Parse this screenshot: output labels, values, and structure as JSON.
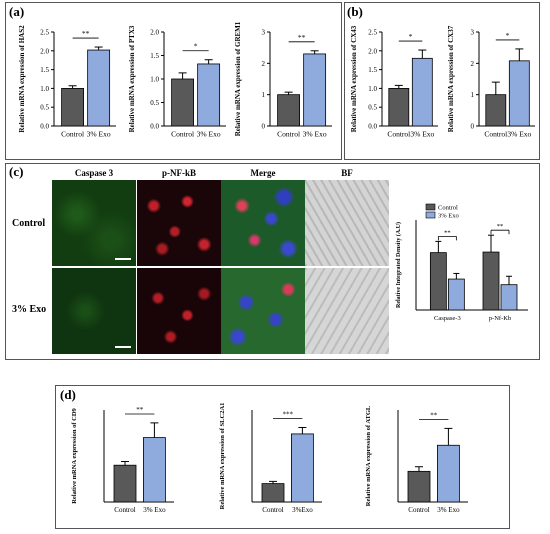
{
  "panels": {
    "a": "(a)",
    "b": "(b)",
    "c": "(c)",
    "d": "(d)"
  },
  "colors": {
    "control": "#595959",
    "exo": "#8faadc",
    "edge": "#000000"
  },
  "micro": {
    "columns": [
      "Caspase 3",
      "p-NF-kB",
      "Merge",
      "BF"
    ],
    "rows": [
      "Control",
      "3% Exo"
    ]
  },
  "chart_data": [
    {
      "id": "has2",
      "type": "bar",
      "panel": "a",
      "categories": [
        "Control",
        "3% Exo"
      ],
      "values": [
        1.0,
        2.02
      ],
      "errors": [
        0.07,
        0.08
      ],
      "ylabel": "Relative mRNA expression of HAS2",
      "ylim": [
        0,
        2.5
      ],
      "yticks": [
        "0.0",
        "0.5",
        "1.0",
        "1.5",
        "2.0",
        "2.5"
      ],
      "sig": "**"
    },
    {
      "id": "ptx3",
      "type": "bar",
      "panel": "a",
      "categories": [
        "Control",
        "3% Exo"
      ],
      "values": [
        1.0,
        1.32
      ],
      "errors": [
        0.13,
        0.09
      ],
      "ylabel": "Relative mRNA expression of PTX3",
      "ylim": [
        0,
        2.0
      ],
      "yticks": [
        "0.0",
        "0.5",
        "1.0",
        "1.5",
        "2.0"
      ],
      "sig": "*"
    },
    {
      "id": "grem1",
      "type": "bar",
      "panel": "a",
      "categories": [
        "Control",
        "3% Exo"
      ],
      "values": [
        1.0,
        2.3
      ],
      "errors": [
        0.08,
        0.1
      ],
      "ylabel": "Relative mRNA expression of GREM1",
      "ylim": [
        0,
        3
      ],
      "yticks": [
        "0",
        "1",
        "2",
        "3"
      ],
      "sig": "**"
    },
    {
      "id": "cx43",
      "type": "bar",
      "panel": "b",
      "categories": [
        "Control",
        "3% Exo"
      ],
      "values": [
        1.0,
        1.8
      ],
      "errors": [
        0.08,
        0.22
      ],
      "ylabel": "Relative mRNA expression of CX43",
      "ylim": [
        0,
        2.5
      ],
      "yticks": [
        "0.0",
        "0.5",
        "1.0",
        "1.5",
        "2.0",
        "2.5"
      ],
      "sig": "*"
    },
    {
      "id": "cx37",
      "type": "bar",
      "panel": "b",
      "categories": [
        "Control",
        "3% Exo"
      ],
      "values": [
        1.0,
        2.08
      ],
      "errors": [
        0.4,
        0.38
      ],
      "ylabel": "Relative mRNA expression of CX37",
      "ylim": [
        0,
        3
      ],
      "yticks": [
        "0",
        "1",
        "2",
        "3"
      ],
      "sig": "*"
    },
    {
      "id": "density",
      "type": "bar",
      "panel": "c",
      "categories": [
        "Caspase-3",
        "p-Nf-Kb"
      ],
      "series": [
        {
          "name": "Control",
          "values": [
            1.02,
            1.03
          ],
          "errors": [
            0.2,
            0.3
          ]
        },
        {
          "name": "3% Exo",
          "values": [
            0.55,
            0.45
          ],
          "errors": [
            0.1,
            0.15
          ]
        }
      ],
      "ylabel": "Relative Integrated Density (A.U)",
      "ylim": [
        0,
        1.6
      ],
      "sig": [
        "**",
        "**"
      ],
      "legend": "top-right"
    },
    {
      "id": "cd9",
      "type": "bar",
      "panel": "d",
      "categories": [
        "Control",
        "3% Exo"
      ],
      "values": [
        1.0,
        1.75
      ],
      "errors": [
        0.1,
        0.4
      ],
      "ylabel": "Relative mRNA expression of CD9",
      "ylim": [
        0,
        2.5
      ],
      "sig": "**"
    },
    {
      "id": "slc2a1",
      "type": "bar",
      "panel": "d",
      "categories": [
        "Control",
        "3%Exo"
      ],
      "values": [
        1.0,
        3.7
      ],
      "errors": [
        0.12,
        0.35
      ],
      "ylabel": "Relative mRNA expression of SLC2A1",
      "ylim": [
        0,
        5
      ],
      "sig": "***"
    },
    {
      "id": "atgl",
      "type": "bar",
      "panel": "d",
      "categories": [
        "Control",
        "3% Exo"
      ],
      "values": [
        1.0,
        1.85
      ],
      "errors": [
        0.15,
        0.55
      ],
      "ylabel": "Relative mRNA expression of ATGL",
      "ylim": [
        0,
        3
      ],
      "sig": "**"
    }
  ]
}
